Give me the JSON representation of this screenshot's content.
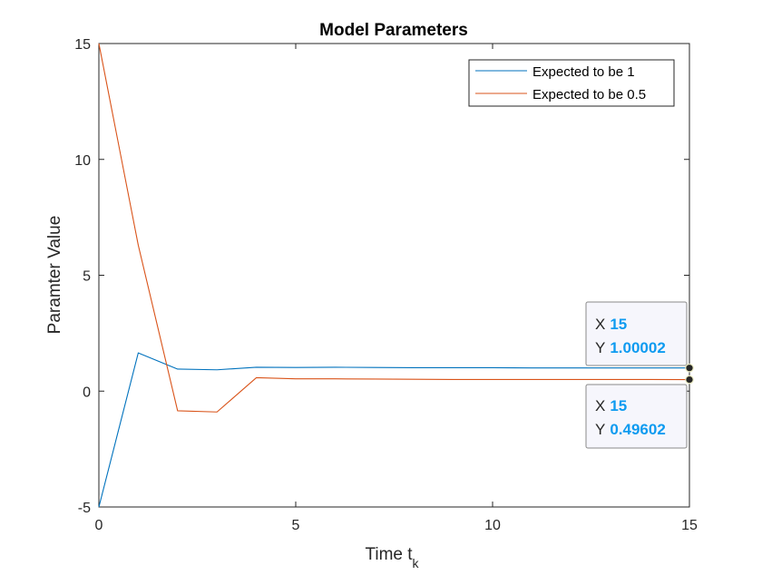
{
  "chart_data": {
    "type": "line",
    "title": "Model Parameters",
    "xlabel_main": "Time t",
    "xlabel_sub": "k",
    "ylabel": "Paramter Value",
    "xlim": [
      0,
      15
    ],
    "ylim": [
      -5,
      15
    ],
    "xticks": [
      "0",
      "5",
      "10",
      "15"
    ],
    "yticks": [
      "-5",
      "0",
      "5",
      "10",
      "15"
    ],
    "grid": false,
    "legend_position": "top-right",
    "x": [
      0,
      1,
      2,
      3,
      4,
      5,
      6,
      7,
      8,
      9,
      10,
      11,
      12,
      13,
      14,
      15
    ],
    "series": [
      {
        "name": "Expected to be 1",
        "color": "#0072bd",
        "values": [
          -5.0,
          1.65,
          0.95,
          0.92,
          1.03,
          1.02,
          1.03,
          1.02,
          1.01,
          1.01,
          1.01,
          1.0,
          1.0,
          1.0,
          1.0,
          1.00002
        ]
      },
      {
        "name": "Expected to be 0.5",
        "color": "#d95319",
        "values": [
          15.0,
          6.3,
          -0.85,
          -0.9,
          0.58,
          0.53,
          0.53,
          0.52,
          0.51,
          0.5,
          0.5,
          0.5,
          0.5,
          0.5,
          0.5,
          0.49602
        ]
      }
    ],
    "datatips": [
      {
        "x_label": "X",
        "x_value": "15",
        "y_label": "Y",
        "y_value": "1.00002"
      },
      {
        "x_label": "X",
        "x_value": "15",
        "y_label": "Y",
        "y_value": "0.49602"
      }
    ]
  }
}
